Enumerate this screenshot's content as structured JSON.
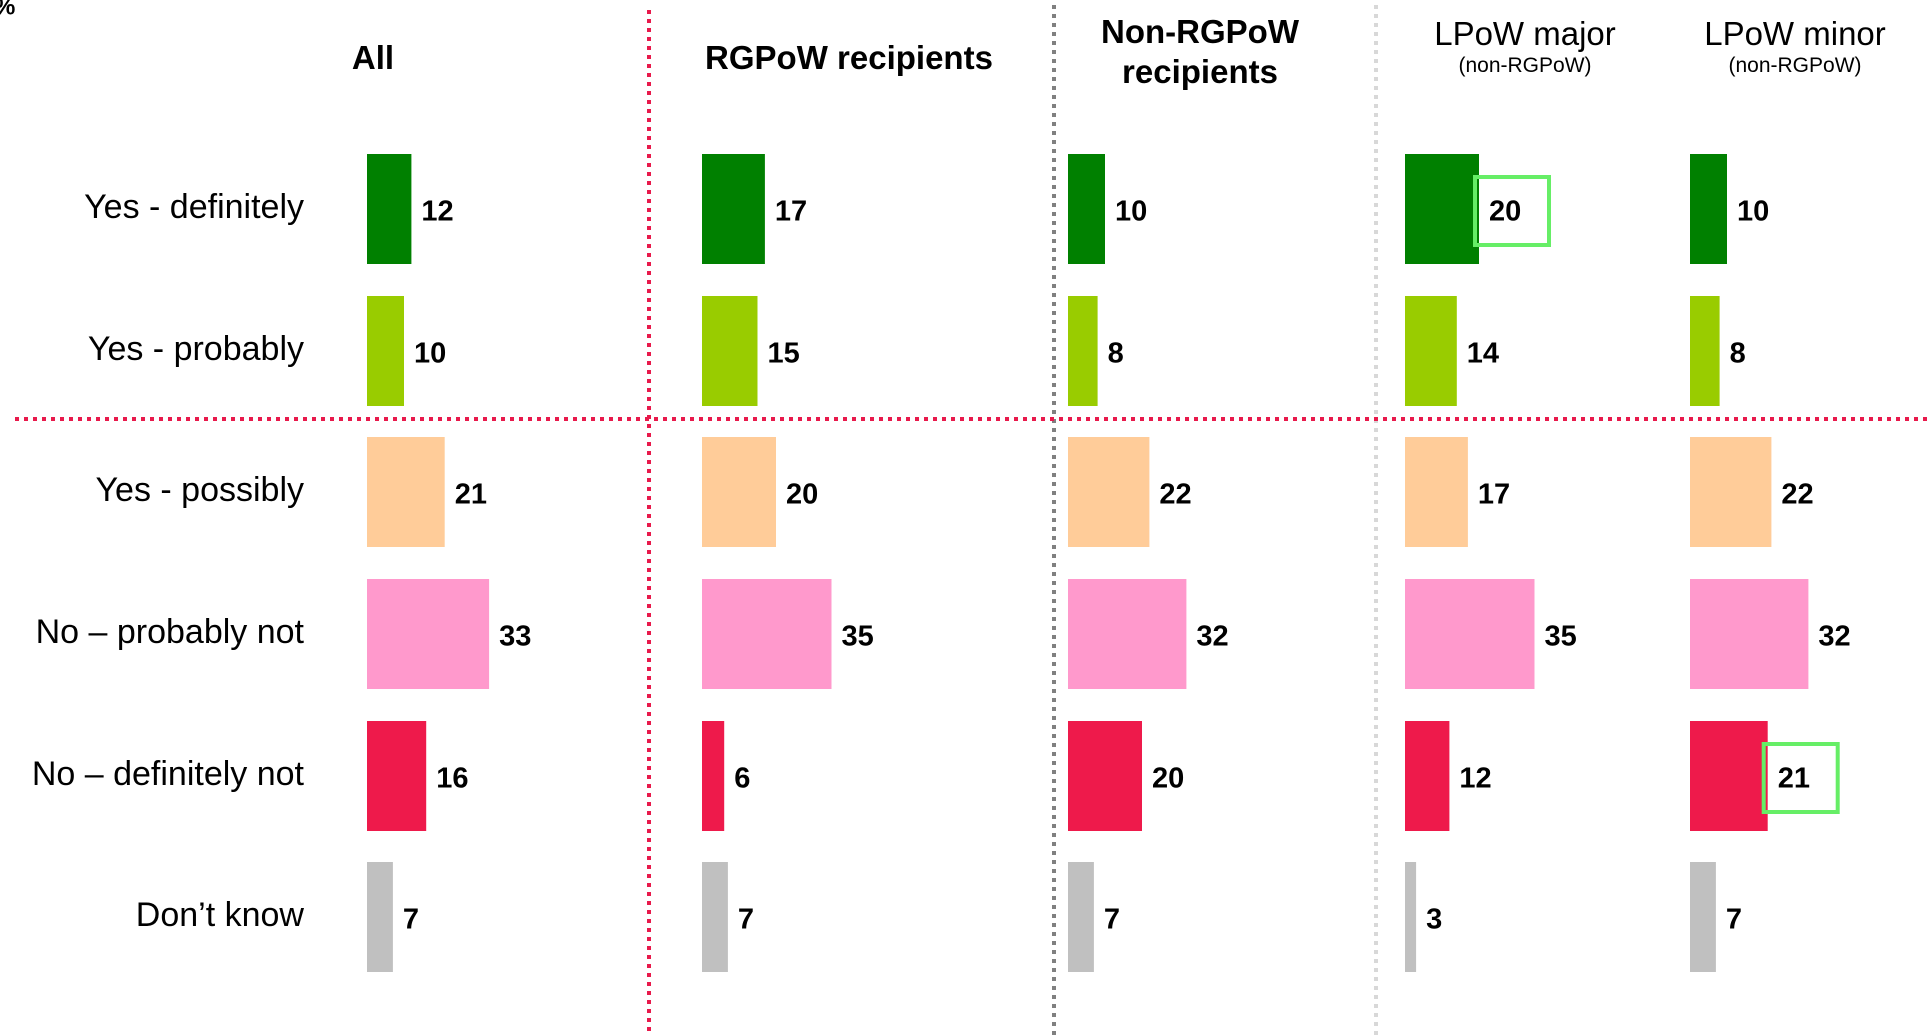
{
  "chart_data": {
    "type": "bar",
    "unit": "%",
    "categories": [
      "Yes - definitely",
      "Yes - probably",
      "Yes - possibly",
      "No – probably not",
      "No – definitely not",
      "Don’t know"
    ],
    "colors": [
      "#008000",
      "#99cc00",
      "#ffcc99",
      "#ff99cc",
      "#ee1a4b",
      "#c0c0c0"
    ],
    "highlight_color": "#66ee66",
    "series": [
      {
        "name": "All",
        "bold": true,
        "values": [
          12,
          10,
          21,
          33,
          16,
          7
        ]
      },
      {
        "name": "RGPoW recipients",
        "bold": true,
        "values": [
          17,
          15,
          20,
          35,
          6,
          7
        ]
      },
      {
        "name": "Non-RGPoW recipients",
        "bold": true,
        "values": [
          10,
          8,
          22,
          32,
          20,
          7
        ]
      },
      {
        "name": "LPoW major",
        "subtitle": "(non-RGPoW)",
        "bold": false,
        "values": [
          20,
          14,
          17,
          35,
          12,
          3
        ],
        "highlighted": [
          0
        ]
      },
      {
        "name": "LPoW minor",
        "subtitle": "(non-RGPoW)",
        "bold": false,
        "values": [
          10,
          8,
          22,
          32,
          21,
          7
        ],
        "highlighted": [
          4
        ]
      }
    ]
  }
}
